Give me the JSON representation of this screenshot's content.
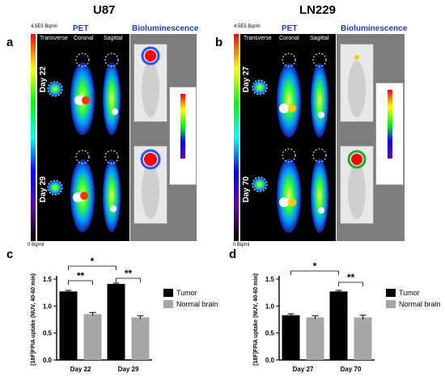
{
  "top": {
    "left": {
      "title": "U87",
      "panel_letter": "a",
      "scale_top": "4.5E5 Bq/ml",
      "scale_bottom": "0 Bq/ml",
      "headers": {
        "pet": "PET",
        "bio": "Bioluminescence",
        "transverse": "Transverse",
        "coronal": "Coronal",
        "sagittal": "Sagittal"
      },
      "days": [
        "Day 22",
        "Day 29"
      ]
    },
    "right": {
      "title": "LN229",
      "panel_letter": "b",
      "scale_top": "4.5E5 Bq/ml",
      "scale_bottom": "0 Bq/ml",
      "headers": {
        "pet": "PET",
        "bio": "Bioluminescence",
        "transverse": "Transverse",
        "coronal": "Coronal",
        "sagittal": "Sagittal"
      },
      "days": [
        "Day 27",
        "Day 70"
      ]
    }
  },
  "chart_data": [
    {
      "type": "bar",
      "panel_letter": "c",
      "categories": [
        "Day 22",
        "Day 29"
      ],
      "series": [
        {
          "name": "Tumor",
          "values": [
            1.27,
            1.41
          ],
          "errors": [
            0.02,
            0.015
          ],
          "color": "#000000"
        },
        {
          "name": "Normal brain",
          "values": [
            0.85,
            0.79
          ],
          "errors": [
            0.03,
            0.03
          ],
          "color": "#a6a6a6"
        }
      ],
      "ylabel": "[18F]FPIA uptake (NUV, 40-60 min)",
      "ylim": [
        0,
        1.5
      ],
      "yticks": [
        "0.0",
        "0.5",
        "1.0",
        "1.5"
      ],
      "significance": [
        "**",
        "*",
        "**"
      ],
      "legend": "right"
    },
    {
      "type": "bar",
      "panel_letter": "d",
      "categories": [
        "Day 27",
        "Day 70"
      ],
      "series": [
        {
          "name": "Tumor",
          "values": [
            0.83,
            1.27
          ],
          "errors": [
            0.025,
            0.02
          ],
          "color": "#000000"
        },
        {
          "name": "Normal brain",
          "values": [
            0.79,
            0.79
          ],
          "errors": [
            0.03,
            0.04
          ],
          "color": "#a6a6a6"
        }
      ],
      "ylabel": "[18F]FPIA uptake (NUV, 40-60 min)",
      "ylim": [
        0,
        1.5
      ],
      "yticks": [
        "0.0",
        "0.5",
        "1.0",
        "1.5"
      ],
      "significance": [
        "*",
        "**"
      ],
      "legend": "right"
    }
  ]
}
